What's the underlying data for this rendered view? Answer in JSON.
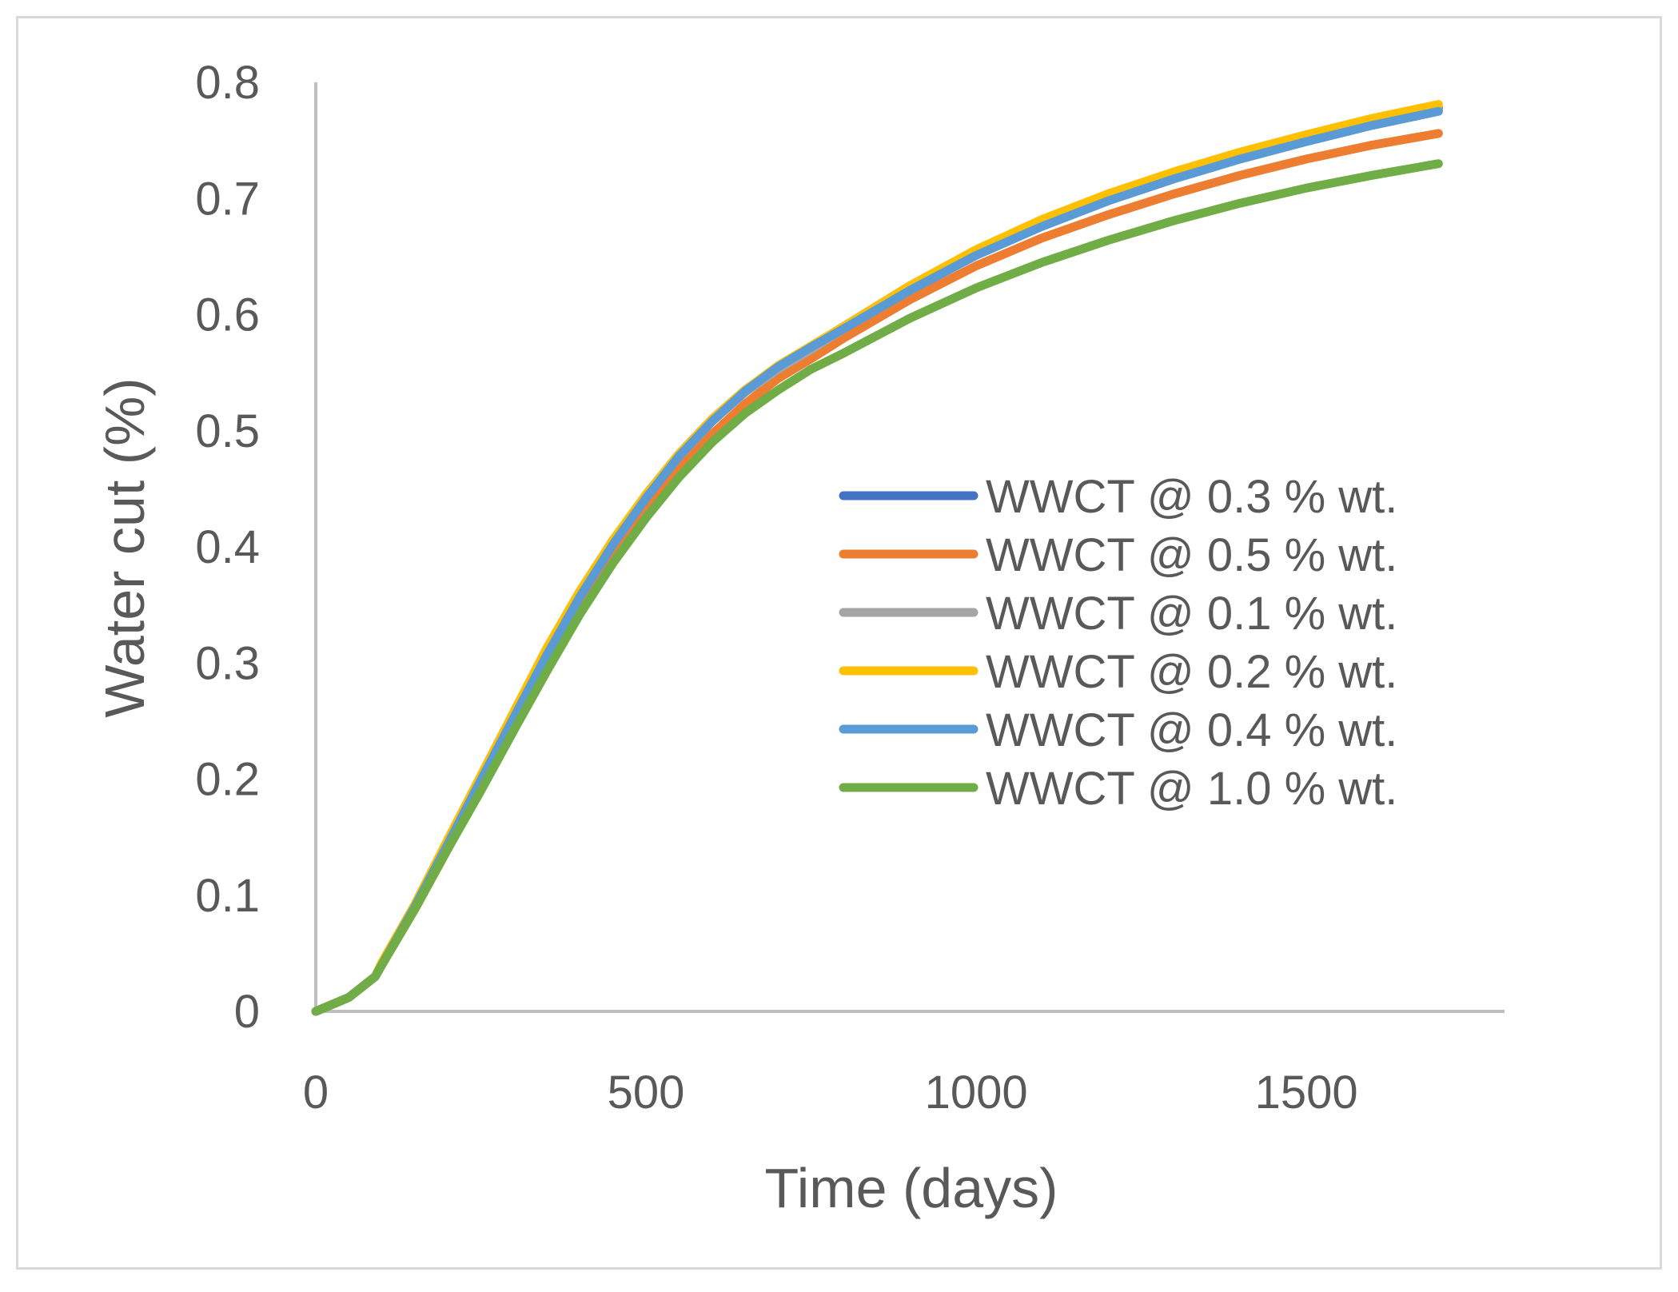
{
  "chart_data": {
    "type": "line",
    "title": "",
    "xlabel": "Time (days)",
    "ylabel": "Water cut (%)",
    "xlim": [
      0,
      1800
    ],
    "ylim": [
      0,
      0.8
    ],
    "xticks": [
      0,
      500,
      1000,
      1500
    ],
    "yticks": [
      0,
      0.1,
      0.2,
      0.3,
      0.4,
      0.5,
      0.6,
      0.7,
      0.8
    ],
    "xtick_labels": [
      "0",
      "500",
      "1000",
      "1500"
    ],
    "ytick_labels": [
      "0",
      "0.1",
      "0.2",
      "0.3",
      "0.4",
      "0.5",
      "0.6",
      "0.7",
      "0.8"
    ],
    "grid": false,
    "legend_position": "center-right",
    "x": [
      0,
      50,
      90,
      100,
      150,
      200,
      250,
      300,
      350,
      400,
      450,
      500,
      550,
      600,
      650,
      700,
      750,
      800,
      900,
      1000,
      1100,
      1200,
      1300,
      1400,
      1500,
      1600,
      1700
    ],
    "series": [
      {
        "name": "WWCT @ 0.3 % wt.",
        "color": "#4472c4",
        "values": [
          0,
          0.012,
          0.03,
          0.04,
          0.09,
          0.145,
          0.2,
          0.255,
          0.31,
          0.36,
          0.405,
          0.445,
          0.48,
          0.51,
          0.535,
          0.555,
          0.572,
          0.59,
          0.625,
          0.655,
          0.68,
          0.702,
          0.72,
          0.737,
          0.752,
          0.766,
          0.778
        ]
      },
      {
        "name": "WWCT @ 0.5 % wt.",
        "color": "#ed7d31",
        "values": [
          0,
          0.012,
          0.03,
          0.04,
          0.088,
          0.14,
          0.192,
          0.245,
          0.298,
          0.348,
          0.393,
          0.432,
          0.467,
          0.497,
          0.523,
          0.545,
          0.562,
          0.58,
          0.613,
          0.642,
          0.666,
          0.686,
          0.704,
          0.72,
          0.734,
          0.746,
          0.756
        ]
      },
      {
        "name": "WWCT @ 0.1 % wt.",
        "color": "#a5a5a5",
        "values": [
          0,
          0.012,
          0.03,
          0.04,
          0.09,
          0.145,
          0.2,
          0.254,
          0.308,
          0.358,
          0.403,
          0.443,
          0.478,
          0.508,
          0.533,
          0.553,
          0.57,
          0.588,
          0.622,
          0.652,
          0.677,
          0.699,
          0.718,
          0.735,
          0.75,
          0.764,
          0.776
        ]
      },
      {
        "name": "WWCT @ 0.2 % wt.",
        "color": "#ffc000",
        "values": [
          0,
          0.012,
          0.03,
          0.042,
          0.092,
          0.148,
          0.203,
          0.258,
          0.313,
          0.362,
          0.406,
          0.445,
          0.48,
          0.51,
          0.535,
          0.556,
          0.573,
          0.59,
          0.625,
          0.656,
          0.682,
          0.704,
          0.723,
          0.74,
          0.755,
          0.769,
          0.781
        ]
      },
      {
        "name": "WWCT @ 0.4 % wt.",
        "color": "#5b9bd5",
        "values": [
          0,
          0.012,
          0.03,
          0.04,
          0.09,
          0.144,
          0.199,
          0.253,
          0.307,
          0.357,
          0.402,
          0.442,
          0.478,
          0.508,
          0.534,
          0.555,
          0.572,
          0.588,
          0.621,
          0.651,
          0.676,
          0.698,
          0.717,
          0.734,
          0.749,
          0.763,
          0.775
        ]
      },
      {
        "name": "WWCT @ 1.0 % wt.",
        "color": "#70ad47",
        "values": [
          0,
          0.012,
          0.03,
          0.04,
          0.088,
          0.14,
          0.19,
          0.242,
          0.293,
          0.342,
          0.386,
          0.425,
          0.46,
          0.49,
          0.515,
          0.535,
          0.553,
          0.567,
          0.597,
          0.623,
          0.645,
          0.664,
          0.681,
          0.696,
          0.709,
          0.72,
          0.73
        ]
      }
    ]
  }
}
